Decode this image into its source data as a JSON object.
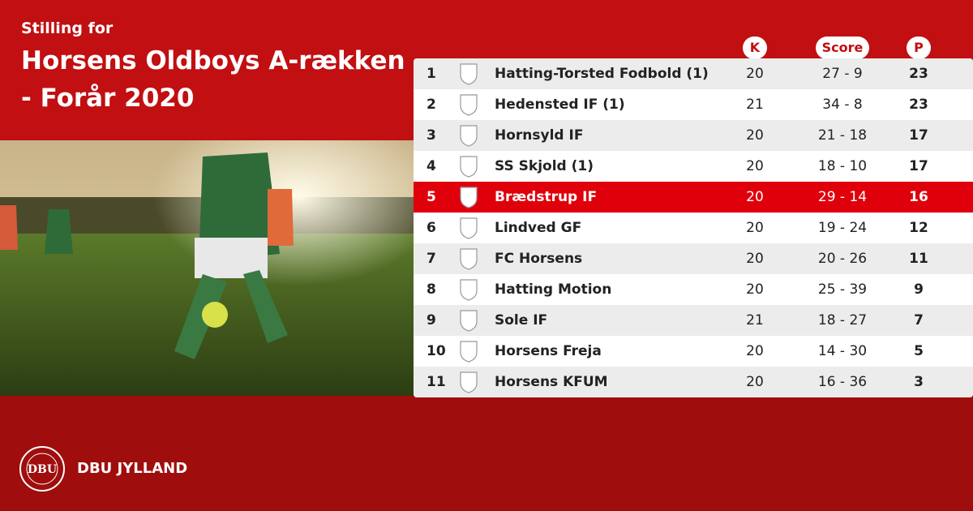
{
  "header": {
    "subtitle": "Stilling for",
    "title_lines": [
      "Horsens Oldboys A-rækken",
      "- Forår 2020"
    ]
  },
  "table": {
    "columns": {
      "k": "K",
      "score": "Score",
      "p": "P"
    },
    "rows": [
      {
        "rank": 1,
        "team": "Hatting-Torsted Fodbold (1)",
        "k": 20,
        "score": "27 - 9",
        "p": 23
      },
      {
        "rank": 2,
        "team": "Hedensted IF  (1)",
        "k": 21,
        "score": "34 - 8",
        "p": 23
      },
      {
        "rank": 3,
        "team": "Hornsyld IF",
        "k": 20,
        "score": "21 - 18",
        "p": 17
      },
      {
        "rank": 4,
        "team": "SS Skjold  (1)",
        "k": 20,
        "score": "18 - 10",
        "p": 17
      },
      {
        "rank": 5,
        "team": "Brædstrup IF",
        "k": 20,
        "score": "29 - 14",
        "p": 16,
        "highlight": true
      },
      {
        "rank": 6,
        "team": "Lindved GF",
        "k": 20,
        "score": "19 - 24",
        "p": 12
      },
      {
        "rank": 7,
        "team": "FC Horsens",
        "k": 20,
        "score": "20 - 26",
        "p": 11
      },
      {
        "rank": 8,
        "team": "Hatting Motion",
        "k": 20,
        "score": "25 - 39",
        "p": 9
      },
      {
        "rank": 9,
        "team": "Sole IF",
        "k": 21,
        "score": "18 - 27",
        "p": 7
      },
      {
        "rank": 10,
        "team": "Horsens Freja",
        "k": 20,
        "score": "14 - 30",
        "p": 5
      },
      {
        "rank": 11,
        "team": "Horsens KFUM",
        "k": 20,
        "score": "16 - 36",
        "p": 3
      }
    ]
  },
  "footer": {
    "logo": "DBU",
    "brand": "DBU JYLLAND"
  }
}
